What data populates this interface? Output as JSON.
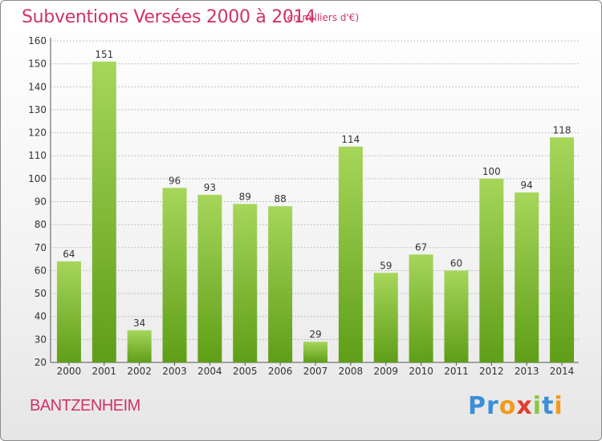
{
  "header": {
    "title": "Subventions Versées 2000 à 2014",
    "subtitle": "(en milliers d'€)"
  },
  "footer": {
    "commune": "BANTZENHEIM",
    "logo_text": "Proxiti"
  },
  "colors": {
    "title": "#d0326a",
    "bar_light": "#a6d65a",
    "bar_dark": "#5f9e18",
    "grid": "#bfbfbf",
    "logo_letters": [
      "#3b8fd6",
      "#3b8fd6",
      "#f39a1d",
      "#e53b2c",
      "#8cc63e",
      "#3b8fd6",
      "#f39a1d"
    ]
  },
  "chart_data": {
    "type": "bar",
    "categories": [
      "2000",
      "2001",
      "2002",
      "2003",
      "2004",
      "2005",
      "2006",
      "2007",
      "2008",
      "2009",
      "2010",
      "2011",
      "2012",
      "2013",
      "2014"
    ],
    "values": [
      64,
      151,
      34,
      96,
      93,
      89,
      88,
      29,
      114,
      59,
      67,
      60,
      100,
      94,
      118
    ],
    "data_labels": [
      "64",
      "151",
      "34",
      "96",
      "93",
      "89",
      "88",
      "29",
      "114",
      "59",
      "67",
      "60",
      "100",
      "94",
      "118"
    ],
    "ylim": [
      20,
      160
    ],
    "yticks": [
      20,
      30,
      40,
      50,
      60,
      70,
      80,
      90,
      100,
      110,
      120,
      130,
      140,
      150,
      160
    ],
    "ytick_labels": [
      "20",
      "30",
      "40",
      "50",
      "60",
      "70",
      "80",
      "90",
      "100",
      "110",
      "120",
      "130",
      "140",
      "150",
      "160"
    ],
    "grid": true,
    "legend": "none"
  }
}
